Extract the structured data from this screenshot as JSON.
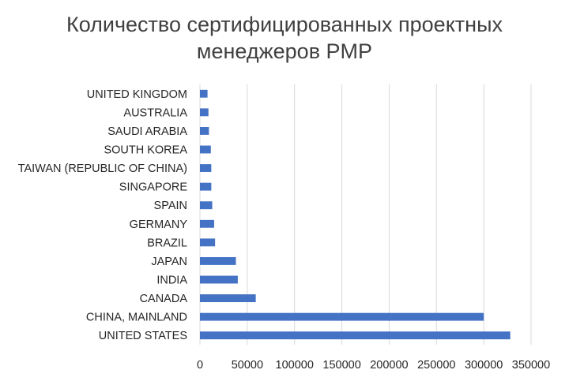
{
  "chart_data": {
    "type": "bar",
    "orientation": "horizontal",
    "title_lines": [
      "Количество сертифицированных проектных",
      "менеджеров PMP"
    ],
    "categories": [
      "UNITED STATES",
      "CHINA, MAINLAND",
      "CANADA",
      "INDIA",
      "JAPAN",
      "BRAZIL",
      "GERMANY",
      "SPAIN",
      "SINGAPORE",
      "TAIWAN (REPUBLIC OF CHINA)",
      "SOUTH KOREA",
      "SAUDI ARABIA",
      "AUSTRALIA",
      "UNITED KINGDOM"
    ],
    "values": [
      328000,
      300000,
      59000,
      40000,
      38000,
      16000,
      15000,
      13000,
      12000,
      12000,
      11500,
      9500,
      9000,
      8000
    ],
    "xlim": [
      0,
      350000
    ],
    "xticks": [
      "0",
      "50000",
      "100000",
      "150000",
      "200000",
      "250000",
      "300000",
      "350000"
    ],
    "grid": true,
    "legend": "none",
    "colors": {
      "bar": "#4472c4",
      "grid": "#d9d9d9",
      "text": "#262626",
      "title": "#404040"
    }
  }
}
